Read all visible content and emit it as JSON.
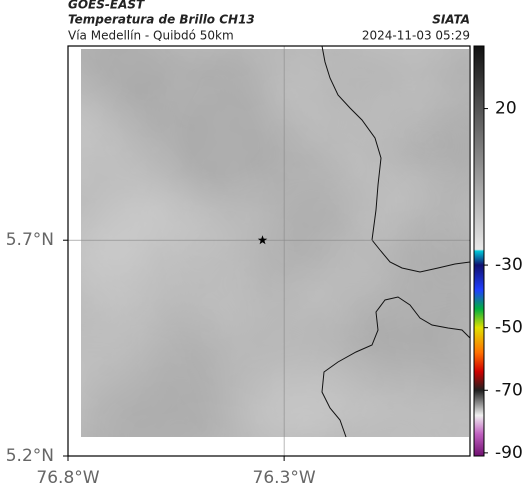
{
  "chart_data": {
    "type": "map",
    "title": "GOES-EAST",
    "subtitle": "Temperatura de Brillo CH13",
    "region": "Vía Medellín - Quibdó 50km",
    "source": "SIATA",
    "datetime": "2024-11-03 05:29",
    "xlim": [
      -76.8,
      -75.87
    ],
    "ylim": [
      5.2,
      6.15
    ],
    "xticks": [
      {
        "value": -76.8,
        "label": "76.8°W"
      },
      {
        "value": -76.3,
        "label": "76.3°W"
      }
    ],
    "yticks": [
      {
        "value": 5.7,
        "label": "5.7°N"
      },
      {
        "value": 5.2,
        "label": "5.2°N"
      }
    ],
    "grid": true,
    "marker": {
      "lon": -76.35,
      "lat": 5.7
    },
    "colorbar": {
      "lim": [
        -91,
        40
      ],
      "ticks": [
        20,
        -30,
        -50,
        -70,
        -90
      ],
      "stops": [
        {
          "value": 40,
          "color": "#111111"
        },
        {
          "value": -25,
          "color": "#e8e8e8"
        },
        {
          "value": -25.5,
          "color": "#00c8d8"
        },
        {
          "value": -30,
          "color": "#101070"
        },
        {
          "value": -38,
          "color": "#2040ff"
        },
        {
          "value": -44,
          "color": "#00b040"
        },
        {
          "value": -50,
          "color": "#e0e000"
        },
        {
          "value": -58,
          "color": "#ff7000"
        },
        {
          "value": -64,
          "color": "#d00000"
        },
        {
          "value": -70,
          "color": "#202020"
        },
        {
          "value": -78,
          "color": "#f0f0f0"
        },
        {
          "value": -84,
          "color": "#c060c0"
        },
        {
          "value": -91,
          "color": "#701070"
        }
      ]
    }
  }
}
